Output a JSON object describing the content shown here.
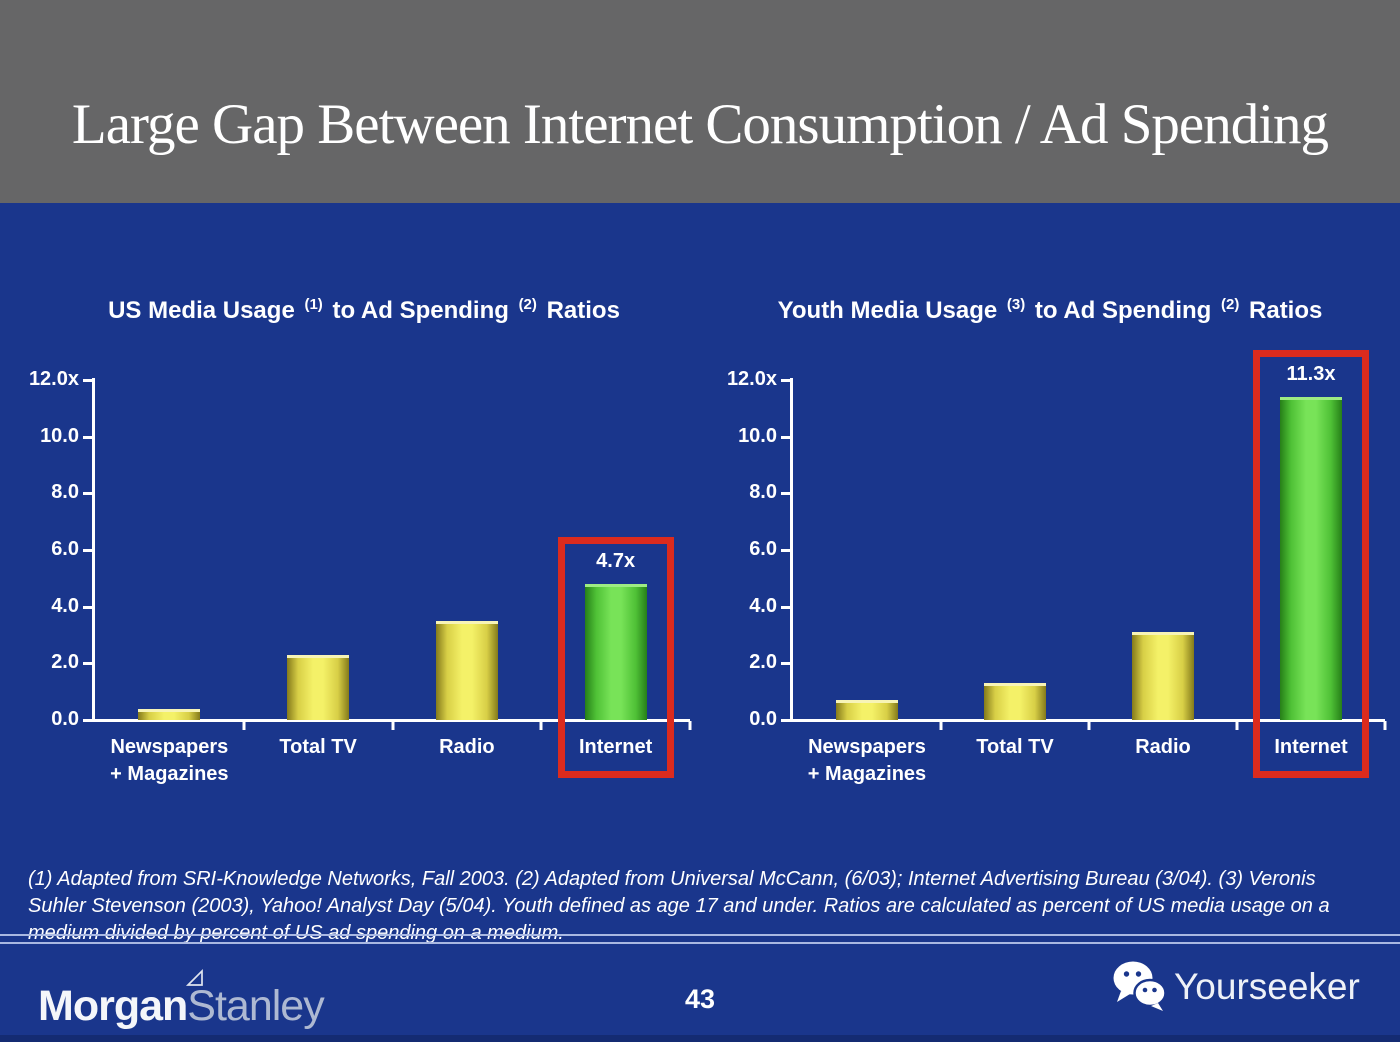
{
  "header": {
    "title": "Large Gap Between Internet Consumption / Ad Spending"
  },
  "chart_data": [
    {
      "type": "bar",
      "title_plain": "US Media Usage (1) to Ad Spending (2) Ratios",
      "title_segments": [
        {
          "t": "US Media Usage "
        },
        {
          "sup": "(1)"
        },
        {
          "t": " to Ad Spending "
        },
        {
          "sup": "(2)"
        },
        {
          "t": " Ratios"
        }
      ],
      "categories": [
        "Newspapers + Magazines",
        "Total TV",
        "Radio",
        "Internet"
      ],
      "category_lines": [
        [
          "Newspapers",
          "+ Magazines"
        ],
        [
          "Total TV"
        ],
        [
          "Radio"
        ],
        [
          "Internet"
        ]
      ],
      "values": [
        0.3,
        2.2,
        3.4,
        4.7
      ],
      "bar_colors": [
        "yellow",
        "yellow",
        "yellow",
        "green"
      ],
      "data_labels": [
        null,
        null,
        null,
        "4.7x"
      ],
      "highlight_index": 3,
      "highlighted_category": "Internet",
      "ylim": [
        0,
        12
      ],
      "yticks": [
        {
          "label": "12.0x",
          "value": 12
        },
        {
          "label": "10.0",
          "value": 10
        },
        {
          "label": "8.0",
          "value": 8
        },
        {
          "label": "6.0",
          "value": 6
        },
        {
          "label": "4.0",
          "value": 4
        },
        {
          "label": "2.0",
          "value": 2
        },
        {
          "label": "0.0",
          "value": 0
        }
      ],
      "grid": false,
      "legend": false
    },
    {
      "type": "bar",
      "title_plain": "Youth Media Usage (3) to Ad Spending (2) Ratios",
      "title_segments": [
        {
          "t": "Youth Media Usage "
        },
        {
          "sup": "(3)"
        },
        {
          "t": " to Ad Spending "
        },
        {
          "sup": "(2)"
        },
        {
          "t": " Ratios"
        }
      ],
      "categories": [
        "Newspapers + Magazines",
        "Total TV",
        "Radio",
        "Internet"
      ],
      "category_lines": [
        [
          "Newspapers",
          "+ Magazines"
        ],
        [
          "Total TV"
        ],
        [
          "Radio"
        ],
        [
          "Internet"
        ]
      ],
      "values": [
        0.6,
        1.2,
        3.0,
        11.3
      ],
      "bar_colors": [
        "yellow",
        "yellow",
        "yellow",
        "green"
      ],
      "data_labels": [
        null,
        null,
        null,
        "11.3x"
      ],
      "highlight_index": 3,
      "highlighted_category": "Internet",
      "ylim": [
        0,
        12
      ],
      "yticks": [
        {
          "label": "12.0x",
          "value": 12
        },
        {
          "label": "10.0",
          "value": 10
        },
        {
          "label": "8.0",
          "value": 8
        },
        {
          "label": "6.0",
          "value": 6
        },
        {
          "label": "4.0",
          "value": 4
        },
        {
          "label": "2.0",
          "value": 2
        },
        {
          "label": "0.0",
          "value": 0
        }
      ],
      "grid": false,
      "legend": false
    }
  ],
  "footnote": "(1) Adapted from SRI-Knowledge Networks, Fall 2003.  (2) Adapted from Universal McCann, (6/03); Internet Advertising Bureau (3/04). (3) Veronis Suhler Stevenson (2003), Yahoo! Analyst Day (5/04).  Youth defined as age 17 and under.  Ratios are calculated as percent of US media usage on a medium divided by percent of US ad spending on a medium.",
  "footer": {
    "logo_part1": "Morgan",
    "logo_part2": "Stanley",
    "page_number": "43",
    "brand_right": "Yourseeker"
  },
  "icons": {
    "wechat": "wechat-icon (two speech bubbles)",
    "ms_flag": "morgan-stanley-flag-icon (outlined triangle pennant)"
  },
  "colors": {
    "header_gray": "#666667",
    "background_blue": "#1a368c",
    "bar_yellow": "#f4f168",
    "bar_green": "#78e358",
    "highlight_red": "#db2b1e",
    "text_white": "#ffffff",
    "separator_line": "#a9b8e2"
  }
}
